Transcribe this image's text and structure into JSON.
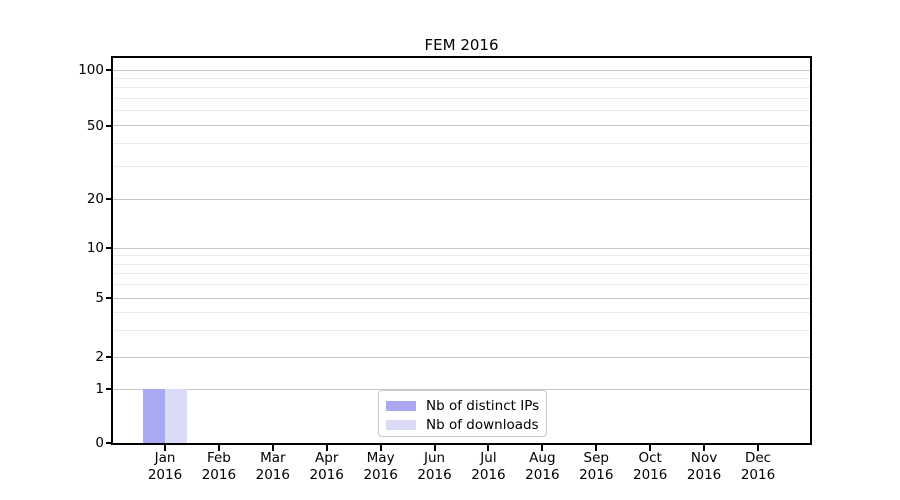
{
  "chart_data": {
    "type": "bar",
    "title": "FEM 2016",
    "categories": [
      "Jan",
      "Feb",
      "Mar",
      "Apr",
      "May",
      "Jun",
      "Jul",
      "Aug",
      "Sep",
      "Oct",
      "Nov",
      "Dec"
    ],
    "category_year": "2016",
    "series": [
      {
        "name": "Nb of distinct IPs",
        "color": "#a8a8f3",
        "values": [
          1,
          0,
          0,
          0,
          0,
          0,
          0,
          0,
          0,
          0,
          0,
          0
        ]
      },
      {
        "name": "Nb of downloads",
        "color": "#dbdbf8",
        "values": [
          1,
          0,
          0,
          0,
          0,
          0,
          0,
          0,
          0,
          0,
          0,
          0
        ]
      }
    ],
    "xlabel": "",
    "ylabel": "",
    "y_axis": {
      "scale": "logarithmic above 1, linear between 0 and 1",
      "major_ticks": [
        0,
        1,
        2,
        5,
        10,
        20,
        50,
        100
      ],
      "minor_ticks": [
        3,
        4,
        6,
        7,
        8,
        9,
        30,
        40,
        60,
        70,
        80,
        90
      ],
      "range": [
        0,
        100
      ]
    },
    "grid": "horizontal major and minor gridlines",
    "legend_position": "lower center inside plot",
    "colors": {
      "grid_major": "#c6c6c6",
      "grid_minor": "#ebebeb",
      "spine": "#000000",
      "background": "#ffffff",
      "text": "#000000"
    }
  }
}
